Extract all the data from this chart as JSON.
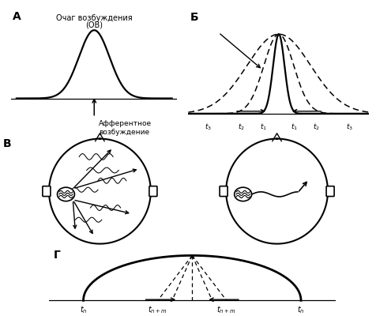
{
  "bg_color": "#ffffff",
  "panel_A_label": "А",
  "panel_B_label": "Б",
  "panel_V_label": "В",
  "panel_G_label": "Г",
  "text_OV_line1": "Очаг возбуждения",
  "text_OV_line2": "(ОВ)",
  "text_afferent": "Афферентное\nвозбуждение",
  "gauss_sigma_A": 0.35,
  "gauss_sigma_t1": 0.08,
  "gauss_sigma_t2": 0.55,
  "gauss_sigma_t3": 2.5
}
